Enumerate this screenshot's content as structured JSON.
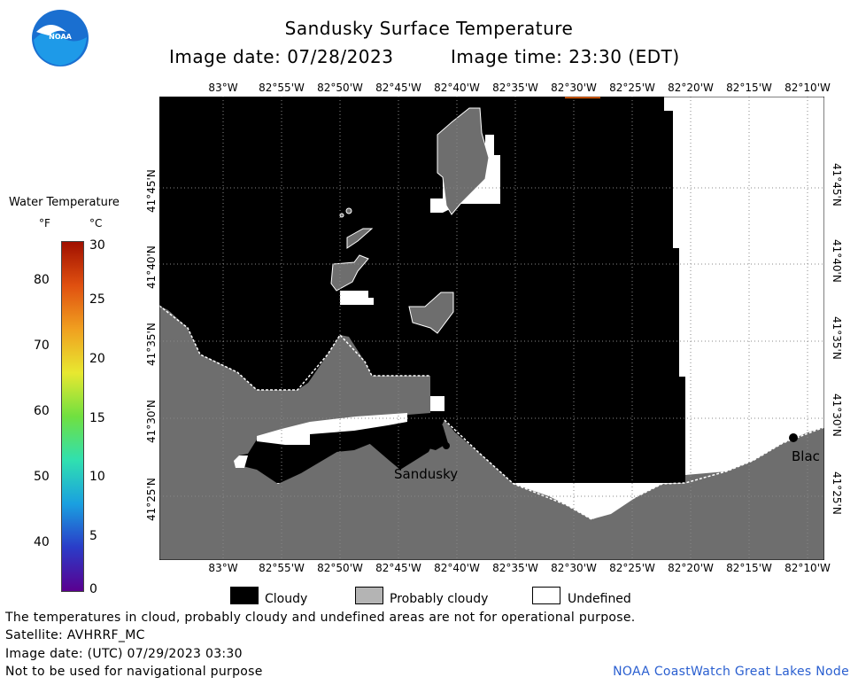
{
  "header": {
    "title": "Sandusky Surface Temperature",
    "image_date_label": "Image date: 07/28/2023",
    "image_time_label": "Image time: 23:30 (EDT)",
    "logo_text": "NOAA"
  },
  "map": {
    "lon_labels": [
      "83°W",
      "82°55'W",
      "82°50'W",
      "82°45'W",
      "82°40'W",
      "82°35'W",
      "82°30'W",
      "82°25'W",
      "82°20'W",
      "82°15'W",
      "82°10'W"
    ],
    "lat_labels": [
      "41°45'N",
      "41°40'N",
      "41°35'N",
      "41°30'N",
      "41°25'N"
    ],
    "place_labels": [
      "Sandusky",
      "Blac"
    ]
  },
  "color_scale": {
    "title": "Water Temperature",
    "unit_f": "°F",
    "unit_c": "°C",
    "f_ticks": [
      "80",
      "70",
      "60",
      "50",
      "40"
    ],
    "c_ticks": [
      "30",
      "25",
      "20",
      "15",
      "10",
      "5",
      "0"
    ],
    "gradient_colors": [
      "#5a0090",
      "#2a3cc8",
      "#1aa0e0",
      "#30e0b0",
      "#70e040",
      "#e8e830",
      "#f0a020",
      "#e05010",
      "#a01000"
    ]
  },
  "legend": {
    "items": [
      {
        "label": "Cloudy",
        "color": "#000000"
      },
      {
        "label": "Probably cloudy",
        "color": "#b4b4b4"
      },
      {
        "label": "Undefined",
        "color": "#ffffff"
      }
    ]
  },
  "footer": {
    "disclaimer": "The temperatures in cloud, probably cloudy and undefined areas are not for operational purpose.",
    "satellite": "Satellite: AVHRRF_MC",
    "utc_date": "Image date: (UTC) 07/29/2023  03:30",
    "navigation_note": "Not to be used for navigational purpose",
    "credit": "NOAA CoastWatch Great Lakes Node"
  }
}
